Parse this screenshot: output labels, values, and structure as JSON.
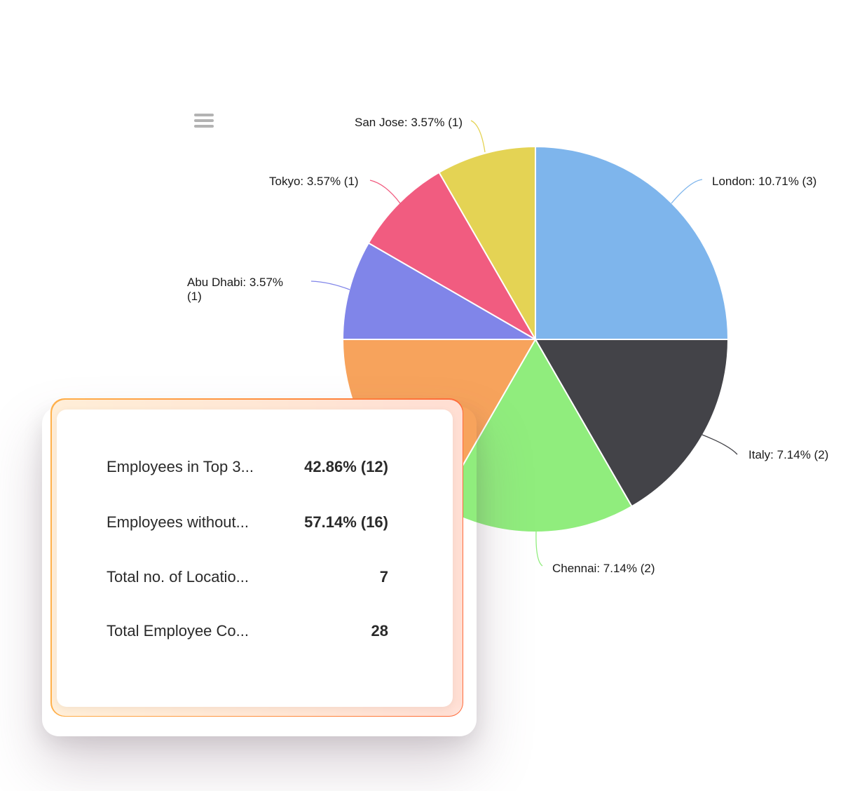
{
  "menu": {
    "icon": "hamburger-menu-icon"
  },
  "chart_data": {
    "type": "pie",
    "slices": [
      {
        "label": "London: 10.71% (3)",
        "name": "London",
        "percent": 10.71,
        "count": 3,
        "color": "#7eb5ec"
      },
      {
        "label": "Italy: 7.14% (2)",
        "name": "Italy",
        "percent": 7.14,
        "count": 2,
        "color": "#434348"
      },
      {
        "label": "Chennai: 7.14% (2)",
        "name": "Chennai",
        "percent": 7.14,
        "count": 2,
        "color": "#90ed7d"
      },
      {
        "label": "",
        "name": "",
        "percent": 7.14,
        "count": 2,
        "color": "#f7a35c"
      },
      {
        "label": "Abu Dhabi: 3.57% (1)",
        "name": "Abu Dhabi",
        "percent": 3.57,
        "count": 1,
        "color": "#8085e9"
      },
      {
        "label": "Tokyo: 3.57% (1)",
        "name": "Tokyo",
        "percent": 3.57,
        "count": 1,
        "color": "#f15c80"
      },
      {
        "label": "San Jose: 3.57% (1)",
        "name": "San Jose",
        "percent": 3.57,
        "count": 1,
        "color": "#e4d354"
      }
    ]
  },
  "kpi_card": {
    "rows": [
      {
        "label": "Employees in Top 3...",
        "value": "42.86% (12)"
      },
      {
        "label": "Employees without...",
        "value": "57.14% (16)"
      },
      {
        "label": "Total no. of Locatio...",
        "value": "7"
      },
      {
        "label": "Total Employee Co...",
        "value": "28"
      }
    ]
  }
}
